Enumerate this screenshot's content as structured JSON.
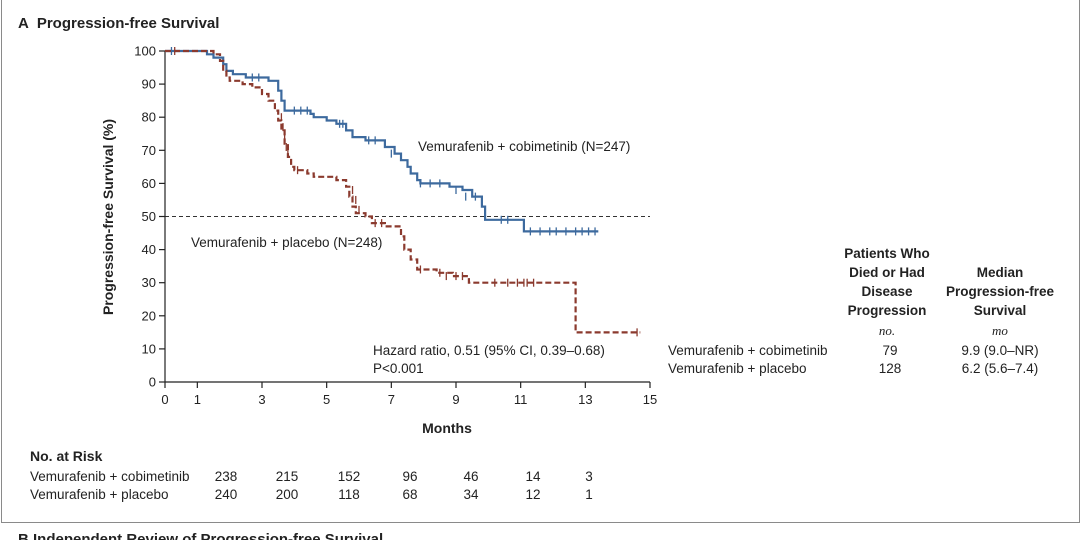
{
  "panel": {
    "letter": "A",
    "title": "Progression-free Survival"
  },
  "next_panel": {
    "letter": "B",
    "title": "Independent Review of Progression-free Survival"
  },
  "chart_data": {
    "type": "line",
    "title": "Progression-free Survival",
    "xlabel": "Months",
    "ylabel": "Progression-free Survival (%)",
    "xlim": [
      0,
      15
    ],
    "ylim": [
      0,
      100
    ],
    "x_ticks": [
      "0",
      "1",
      "3",
      "5",
      "7",
      "9",
      "11",
      "13",
      "15"
    ],
    "x_tick_values": [
      0,
      1,
      3,
      5,
      7,
      9,
      11,
      13,
      15
    ],
    "y_ticks": [
      "0",
      "10",
      "20",
      "30",
      "40",
      "50",
      "60",
      "70",
      "80",
      "90",
      "100"
    ],
    "y_tick_values": [
      0,
      10,
      20,
      30,
      40,
      50,
      60,
      70,
      80,
      90,
      100
    ],
    "reference_line": {
      "y": 50,
      "style": "dashed"
    },
    "series": [
      {
        "name": "Vemurafenib + cobimetinib (N=247)",
        "color": "#3d6a9e",
        "dash": "solid",
        "steps": [
          [
            0,
            100
          ],
          [
            1.2,
            100
          ],
          [
            1.3,
            99
          ],
          [
            1.5,
            98
          ],
          [
            1.8,
            96
          ],
          [
            1.9,
            94
          ],
          [
            2.1,
            93
          ],
          [
            2.5,
            92
          ],
          [
            3.2,
            91
          ],
          [
            3.5,
            88
          ],
          [
            3.6,
            85
          ],
          [
            3.7,
            82
          ],
          [
            4.5,
            81
          ],
          [
            4.6,
            80
          ],
          [
            5.0,
            79
          ],
          [
            5.3,
            78
          ],
          [
            5.6,
            76
          ],
          [
            5.8,
            74
          ],
          [
            6.2,
            73
          ],
          [
            6.8,
            71
          ],
          [
            7.1,
            69
          ],
          [
            7.3,
            67
          ],
          [
            7.5,
            65
          ],
          [
            7.6,
            63
          ],
          [
            7.8,
            61
          ],
          [
            7.9,
            60
          ],
          [
            8.8,
            59
          ],
          [
            9.2,
            58
          ],
          [
            9.5,
            56
          ],
          [
            9.8,
            53
          ],
          [
            9.9,
            49
          ],
          [
            11.1,
            45.5
          ],
          [
            13.4,
            45.5
          ]
        ],
        "censors": [
          [
            0.2,
            100
          ],
          [
            2.7,
            92
          ],
          [
            2.9,
            92
          ],
          [
            4.0,
            82
          ],
          [
            4.2,
            82
          ],
          [
            4.4,
            82
          ],
          [
            5.4,
            78
          ],
          [
            5.5,
            78
          ],
          [
            6.3,
            73
          ],
          [
            6.5,
            73
          ],
          [
            7.0,
            69
          ],
          [
            7.9,
            60
          ],
          [
            8.2,
            60
          ],
          [
            8.5,
            60
          ],
          [
            9.0,
            58
          ],
          [
            9.3,
            56
          ],
          [
            9.6,
            56
          ],
          [
            10.4,
            49
          ],
          [
            10.6,
            49
          ],
          [
            11.3,
            45.5
          ],
          [
            11.6,
            45.5
          ],
          [
            11.9,
            45.5
          ],
          [
            12.1,
            45.5
          ],
          [
            12.4,
            45.5
          ],
          [
            12.7,
            45.5
          ],
          [
            12.9,
            45.5
          ],
          [
            13.1,
            45.5
          ],
          [
            13.3,
            45.5
          ]
        ]
      },
      {
        "name": "Vemurafenib + placebo (N=248)",
        "color": "#8b3a2e",
        "dash": "dashed",
        "steps": [
          [
            0,
            100
          ],
          [
            1.3,
            100
          ],
          [
            1.5,
            99
          ],
          [
            1.7,
            97
          ],
          [
            1.8,
            94
          ],
          [
            1.9,
            92
          ],
          [
            2.0,
            91
          ],
          [
            2.4,
            90
          ],
          [
            2.7,
            89
          ],
          [
            3.0,
            87
          ],
          [
            3.2,
            85
          ],
          [
            3.4,
            82
          ],
          [
            3.5,
            79
          ],
          [
            3.6,
            76
          ],
          [
            3.7,
            72
          ],
          [
            3.8,
            68
          ],
          [
            3.9,
            65
          ],
          [
            4.0,
            64
          ],
          [
            4.4,
            63
          ],
          [
            4.6,
            62
          ],
          [
            5.3,
            61
          ],
          [
            5.6,
            59
          ],
          [
            5.7,
            56
          ],
          [
            5.8,
            53
          ],
          [
            5.9,
            51
          ],
          [
            6.2,
            50
          ],
          [
            6.4,
            48
          ],
          [
            6.8,
            47
          ],
          [
            7.3,
            44
          ],
          [
            7.4,
            40
          ],
          [
            7.6,
            37
          ],
          [
            7.8,
            34
          ],
          [
            8.4,
            33
          ],
          [
            8.9,
            32
          ],
          [
            9.4,
            30
          ],
          [
            12.6,
            30
          ],
          [
            12.7,
            15
          ],
          [
            14.7,
            15
          ]
        ],
        "censors": [
          [
            0.3,
            100
          ],
          [
            3.6,
            80
          ],
          [
            3.65,
            77
          ],
          [
            3.7,
            74
          ],
          [
            3.75,
            71
          ],
          [
            3.8,
            69
          ],
          [
            4.1,
            64
          ],
          [
            5.8,
            58
          ],
          [
            5.9,
            55
          ],
          [
            6.0,
            52
          ],
          [
            6.5,
            48
          ],
          [
            6.7,
            48
          ],
          [
            7.9,
            34
          ],
          [
            8.5,
            33
          ],
          [
            8.7,
            32
          ],
          [
            9.0,
            32
          ],
          [
            9.2,
            32
          ],
          [
            10.2,
            30
          ],
          [
            10.6,
            30
          ],
          [
            10.9,
            30
          ],
          [
            11.1,
            30
          ],
          [
            11.2,
            30
          ],
          [
            11.4,
            30
          ],
          [
            14.6,
            15
          ]
        ]
      }
    ]
  },
  "annotations": {
    "cobimetinib_label": "Vemurafenib + cobimetinib (N=247)",
    "placebo_label": "Vemurafenib + placebo (N=248)",
    "hazard_ratio": "Hazard ratio, 0.51 (95% CI, 0.39–0.68)",
    "p_value": "P<0.001"
  },
  "summary_table": {
    "col1_header": [
      "Patients Who",
      "Died or Had",
      "Disease",
      "Progression"
    ],
    "col1_unit": "no.",
    "col2_header": [
      "Median",
      "Progression-free",
      "Survival"
    ],
    "col2_unit": "mo",
    "rows": [
      {
        "label": "Vemurafenib + cobimetinib",
        "events": "79",
        "median": "9.9 (9.0–NR)"
      },
      {
        "label": "Vemurafenib + placebo",
        "events": "128",
        "median": "6.2 (5.6–7.4)"
      }
    ]
  },
  "risk_table": {
    "title": "No. at Risk",
    "rows": [
      {
        "label": "Vemurafenib + cobimetinib",
        "values": [
          "238",
          "215",
          "152",
          "96",
          "46",
          "14",
          "3"
        ]
      },
      {
        "label": "Vemurafenib + placebo",
        "values": [
          "240",
          "200",
          "118",
          "68",
          "34",
          "12",
          "1"
        ]
      }
    ]
  }
}
